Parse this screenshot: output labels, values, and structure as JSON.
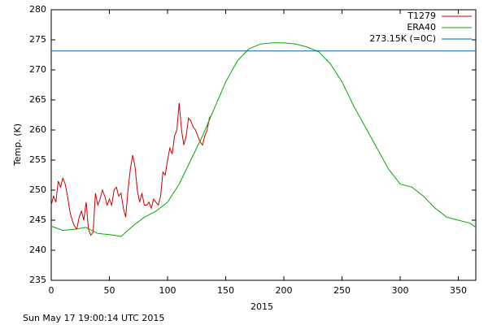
{
  "chart_data": {
    "type": "line",
    "xlabel": "2015",
    "ylabel": "Temp. (K)",
    "footer": "Sun May 17 19:00:14 UTC 2015",
    "xlim": [
      0,
      365
    ],
    "ylim": [
      235,
      280
    ],
    "xticks": [
      0,
      50,
      100,
      150,
      200,
      250,
      300,
      350
    ],
    "yticks": [
      235,
      240,
      245,
      250,
      255,
      260,
      265,
      270,
      275,
      280
    ],
    "legend": "upper right",
    "series": [
      {
        "name": "T1279",
        "color": "#cc0000",
        "x": [
          0,
          2,
          4,
          6,
          8,
          10,
          12,
          14,
          16,
          18,
          20,
          22,
          24,
          26,
          28,
          30,
          32,
          34,
          36,
          38,
          40,
          42,
          44,
          46,
          48,
          50,
          52,
          54,
          56,
          58,
          60,
          62,
          64,
          66,
          68,
          70,
          72,
          74,
          76,
          78,
          80,
          82,
          84,
          86,
          88,
          90,
          92,
          94,
          96,
          98,
          100,
          102,
          104,
          106,
          108,
          110,
          112,
          114,
          116,
          118,
          120,
          122,
          124,
          126,
          128,
          130,
          132,
          134,
          136,
          137
        ],
        "values": [
          247.5,
          249,
          248,
          251.5,
          250.5,
          252,
          251,
          249,
          246.5,
          245,
          244,
          243.5,
          245.5,
          246.5,
          245,
          248,
          243.5,
          242.5,
          243,
          249.5,
          247.5,
          248.5,
          250,
          249,
          247.5,
          248.5,
          247.5,
          250,
          250.5,
          249,
          249.5,
          247,
          245.5,
          250,
          253.5,
          255.8,
          254,
          250,
          248,
          249.5,
          247.5,
          247.5,
          248,
          247,
          248.5,
          248,
          247.5,
          249,
          253,
          252.5,
          255,
          257,
          256,
          259,
          260,
          264.5,
          260,
          257.5,
          259,
          262,
          261.5,
          260.5,
          260,
          259,
          258,
          257.5,
          259,
          260,
          262,
          262.3
        ]
      },
      {
        "name": "ERA40",
        "color": "#00aa00",
        "x": [
          0,
          10,
          20,
          30,
          40,
          50,
          60,
          70,
          80,
          90,
          100,
          110,
          120,
          130,
          140,
          150,
          160,
          170,
          180,
          190,
          200,
          210,
          220,
          230,
          240,
          250,
          260,
          270,
          280,
          290,
          300,
          310,
          320,
          330,
          340,
          350,
          360,
          365
        ],
        "values": [
          244,
          243.3,
          243.5,
          243.8,
          242.8,
          242.6,
          242.3,
          244,
          245.5,
          246.5,
          248,
          251,
          255,
          259,
          263.5,
          268,
          271.5,
          273.5,
          274.3,
          274.5,
          274.5,
          274.3,
          273.8,
          273,
          271,
          268,
          264,
          260.5,
          257,
          253.5,
          251,
          250.5,
          249,
          247,
          245.5,
          245,
          244.5,
          243.8
        ]
      },
      {
        "name": "273.15K (=0C)",
        "color": "#0060ad",
        "x": [
          0,
          365
        ],
        "values": [
          273.15,
          273.15
        ]
      }
    ]
  }
}
